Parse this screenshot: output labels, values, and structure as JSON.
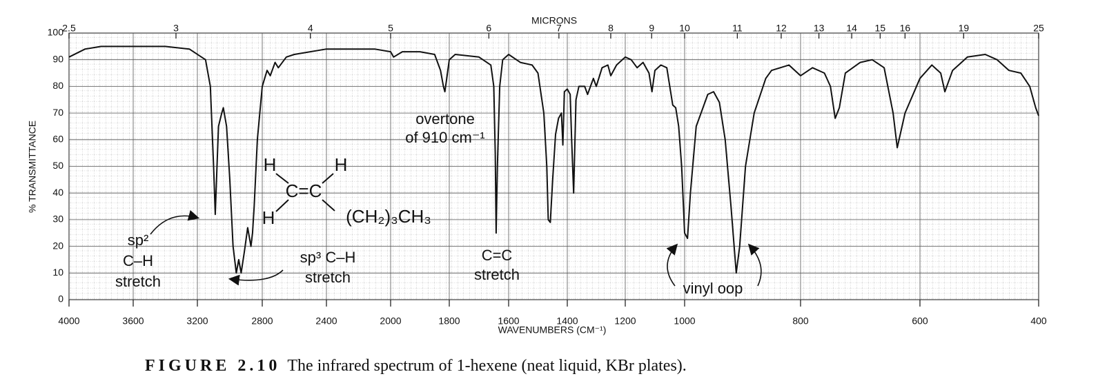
{
  "chart_data": {
    "type": "line",
    "x_label": "WAVENUMBERS (CM⁻¹)",
    "x2_label": "MICRONS",
    "y_label": "% TRANSMITTANCE",
    "color": "#111111",
    "grid": true,
    "xlim": [
      4000,
      400
    ],
    "ylim": [
      0,
      100
    ],
    "xticks": [
      4000,
      3600,
      3200,
      2800,
      2400,
      2000,
      1800,
      1600,
      1400,
      1200,
      1000,
      800,
      600,
      400
    ],
    "yticks": [
      0,
      10,
      20,
      30,
      40,
      50,
      60,
      70,
      80,
      90,
      100
    ],
    "x2ticks": [
      2.5,
      3,
      4,
      5,
      6,
      7,
      8,
      9,
      10,
      11,
      12,
      13,
      14,
      15,
      16,
      19,
      25
    ],
    "x": [
      4000,
      3900,
      3800,
      3600,
      3400,
      3250,
      3150,
      3120,
      3100,
      3090,
      3085,
      3070,
      3050,
      3040,
      3020,
      3000,
      2980,
      2960,
      2945,
      2930,
      2910,
      2890,
      2870,
      2860,
      2850,
      2830,
      2800,
      2770,
      2750,
      2720,
      2700,
      2650,
      2600,
      2400,
      2200,
      2100,
      2000,
      1990,
      1960,
      1900,
      1850,
      1830,
      1820,
      1815,
      1810,
      1800,
      1780,
      1700,
      1660,
      1650,
      1645,
      1642,
      1638,
      1630,
      1620,
      1600,
      1560,
      1520,
      1500,
      1480,
      1470,
      1465,
      1458,
      1450,
      1440,
      1430,
      1420,
      1415,
      1410,
      1400,
      1390,
      1385,
      1378,
      1370,
      1360,
      1340,
      1330,
      1310,
      1300,
      1280,
      1260,
      1250,
      1230,
      1200,
      1180,
      1160,
      1140,
      1120,
      1110,
      1100,
      1080,
      1060,
      1050,
      1040,
      1030,
      1020,
      1010,
      1000,
      995,
      990,
      980,
      960,
      950,
      940,
      930,
      920,
      911,
      905,
      895,
      880,
      860,
      850,
      820,
      800,
      780,
      760,
      750,
      742,
      735,
      725,
      700,
      680,
      660,
      645,
      638,
      625,
      600,
      580,
      565,
      558,
      545,
      520,
      490,
      470,
      450,
      430,
      415,
      405,
      400
    ],
    "values": [
      91,
      94,
      95,
      95,
      95,
      94,
      90,
      80,
      50,
      32,
      40,
      65,
      70,
      72,
      65,
      45,
      20,
      10,
      15,
      10,
      18,
      27,
      20,
      25,
      35,
      60,
      80,
      86,
      84,
      89,
      87,
      91,
      92,
      94,
      94,
      94,
      93,
      91,
      93,
      93,
      92,
      86,
      80,
      78,
      82,
      90,
      92,
      91,
      88,
      80,
      55,
      25,
      50,
      80,
      90,
      92,
      89,
      88,
      85,
      70,
      50,
      30,
      29,
      45,
      62,
      68,
      70,
      58,
      78,
      79,
      77,
      60,
      40,
      75,
      80,
      80,
      77,
      83,
      80,
      87,
      88,
      84,
      88,
      91,
      90,
      87,
      89,
      85,
      78,
      86,
      88,
      87,
      80,
      73,
      72,
      65,
      50,
      25,
      23,
      40,
      65,
      77,
      78,
      74,
      60,
      35,
      10,
      20,
      50,
      70,
      83,
      86,
      88,
      84,
      87,
      85,
      80,
      68,
      72,
      85,
      89,
      90,
      87,
      70,
      57,
      70,
      83,
      88,
      85,
      78,
      86,
      91,
      92,
      90,
      86,
      85,
      80,
      72,
      69
    ],
    "annotations": [
      "overtone",
      "of 910 cm⁻¹",
      "sp²",
      "C–H",
      "stretch",
      "sp³ C–H",
      "stretch",
      "C=C",
      "stretch",
      "vinyl oop"
    ],
    "molecule": [
      "H",
      "H",
      "C=C",
      "H",
      "(CH₂)₃CH₃"
    ]
  },
  "caption": {
    "figure": "FIGURE 2.10",
    "text": "The infrared spectrum of 1-hexene (neat liquid, KBr plates)."
  }
}
